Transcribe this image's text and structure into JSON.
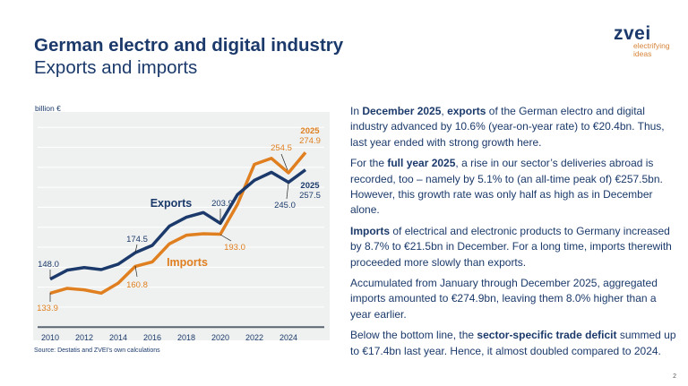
{
  "header": {
    "title": "German electro and digital industry",
    "subtitle": "Exports and imports"
  },
  "logo": {
    "name": "zvei",
    "slogan_1": "electrifying",
    "slogan_2": "ideas"
  },
  "chart_data": {
    "type": "line",
    "ylabel": "billion €",
    "x": [
      2010,
      2011,
      2012,
      2013,
      2014,
      2015,
      2016,
      2017,
      2018,
      2019,
      2020,
      2021,
      2022,
      2023,
      2024,
      2025
    ],
    "xticks": [
      "2010",
      "2012",
      "2014",
      "2016",
      "2018",
      "2020",
      "2022",
      "2024"
    ],
    "ylim": [
      100,
      300
    ],
    "grid": true,
    "series": [
      {
        "name": "Exports",
        "color": "#1b3a6b",
        "values": [
          148.0,
          157,
          159.6,
          157.6,
          163,
          174.5,
          181.8,
          201,
          210,
          214.7,
          203.9,
          232.6,
          247,
          255,
          245.0,
          257.5
        ]
      },
      {
        "name": "Imports",
        "color": "#e07f1f",
        "values": [
          133.9,
          138.8,
          137.3,
          134,
          144,
          160.8,
          165.3,
          183.3,
          192,
          193.5,
          193.0,
          222.8,
          263,
          269,
          254.5,
          274.9
        ]
      }
    ],
    "annotations": {
      "exp_2010": "148.0",
      "exp_2015": "174.5",
      "exp_2020": "203.9",
      "exp_2024": "245.0",
      "exp_2025_year": "2025",
      "exp_2025": "257.5",
      "imp_2010": "133.9",
      "imp_2015": "160.8",
      "imp_2020": "193.0",
      "imp_2024": "254.5",
      "imp_2025_year": "2025",
      "imp_2025": "274.9"
    },
    "source": "Source: Destatis and ZVEI's own calculations"
  },
  "body": {
    "p1": [
      {
        "t": "In "
      },
      {
        "t": "December 2025",
        "b": true
      },
      {
        "t": ", "
      },
      {
        "t": "exports",
        "b": true
      },
      {
        "t": " of the German electro and digital industry advanced by 10.6% (year-on-year rate) to €20.4bn. Thus, last year ended with strong growth here."
      }
    ],
    "p2": [
      {
        "t": "For the "
      },
      {
        "t": "full year 2025",
        "b": true
      },
      {
        "t": ", a rise in our sector’s deliveries abroad is recorded, too – namely by 5.1% to (an all-time peak of) €257.5bn. However, this growth rate was only half as high as in December alone."
      }
    ],
    "p3": [
      {
        "t": "Imports",
        "b": true
      },
      {
        "t": " of electrical and electronic products to Germany increased by 8.7% to €21.5bn in December. For a long time, imports therewith proceeded more slowly than exports."
      }
    ],
    "p4": [
      {
        "t": "Accumulated from January through December 2025, aggregated imports amounted to €274.9bn, leaving them 8.0% higher than a year earlier."
      }
    ],
    "p5": [
      {
        "t": "Below the bottom line, the "
      },
      {
        "t": "sector-specific trade deficit",
        "b": true
      },
      {
        "t": " summed up to €17.4bn last year. Hence, it almost doubled compared to 2024."
      }
    ]
  },
  "page_number": "2"
}
